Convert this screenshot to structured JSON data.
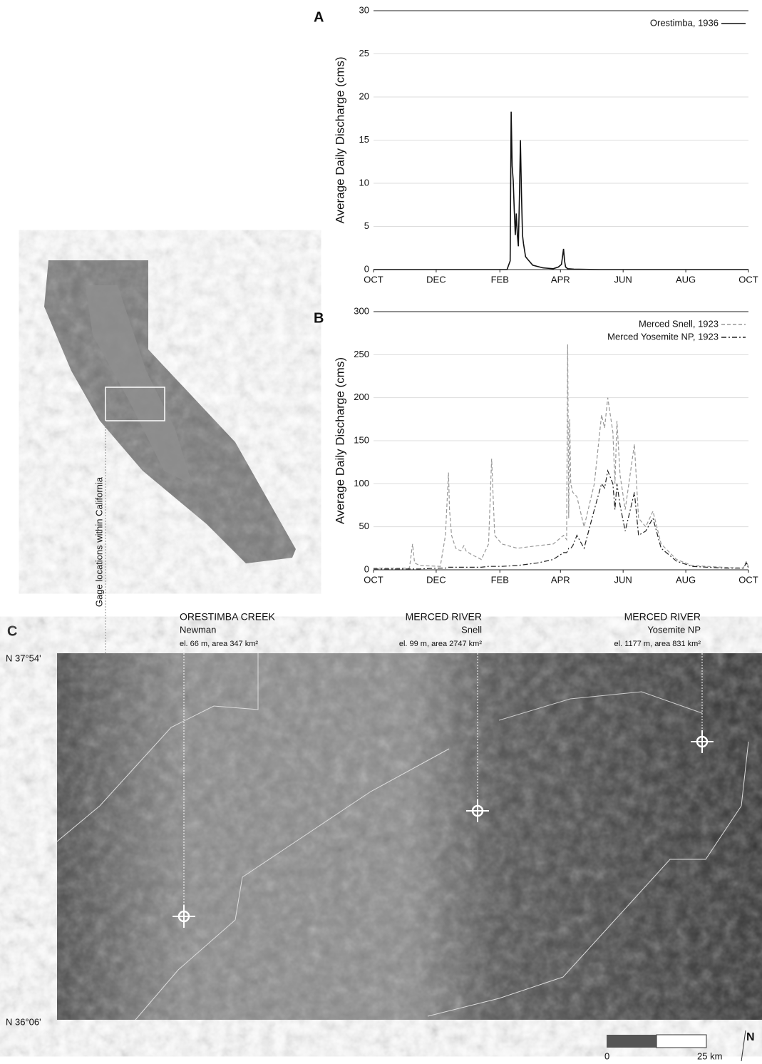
{
  "chart_data": [
    {
      "type": "line",
      "panel": "A",
      "y_label": "Average Daily Discharge (cms)",
      "x": [
        0,
        130,
        133,
        134,
        135,
        136,
        137,
        138,
        139,
        140,
        141,
        142,
        143,
        144,
        145,
        146,
        148,
        150,
        155,
        165,
        175,
        180,
        183,
        185,
        186,
        187,
        189,
        195,
        220,
        365
      ],
      "xlim": [
        0,
        365
      ],
      "xticks": [
        {
          "value": 0,
          "label": "OCT"
        },
        {
          "value": 61,
          "label": "DEC"
        },
        {
          "value": 123,
          "label": "FEB"
        },
        {
          "value": 182,
          "label": "APR"
        },
        {
          "value": 243,
          "label": "JUN"
        },
        {
          "value": 304,
          "label": "AUG"
        },
        {
          "value": 365,
          "label": "OCT"
        }
      ],
      "ylim": [
        0,
        30
      ],
      "yticks": [
        0,
        5,
        10,
        15,
        20,
        25,
        30
      ],
      "grid": true,
      "legend": "upper right",
      "series": [
        {
          "name": "Orestimba, 1936",
          "color": "#111111",
          "dash": "solid",
          "values": [
            0,
            0,
            1,
            18.3,
            12,
            10.3,
            7,
            4,
            6.5,
            4,
            2.7,
            8,
            15,
            9,
            4,
            3,
            1.5,
            1.2,
            0.5,
            0.2,
            0.1,
            0.3,
            0.6,
            2.4,
            1,
            0.3,
            0.1,
            0.05,
            0,
            0
          ]
        }
      ]
    },
    {
      "type": "line",
      "panel": "B",
      "y_label": "Average Daily Discharge (cms)",
      "x": [
        0,
        35,
        38,
        40,
        45,
        65,
        70,
        73,
        74,
        76,
        80,
        85,
        88,
        90,
        95,
        105,
        112,
        115,
        118,
        125,
        140,
        160,
        175,
        185,
        188,
        189,
        190,
        191,
        192,
        194,
        198,
        205,
        215,
        222,
        225,
        228,
        233,
        235,
        237,
        240,
        245,
        254,
        258,
        265,
        272,
        280,
        295,
        310,
        340,
        360,
        363,
        365
      ],
      "xlim": [
        0,
        365
      ],
      "xticks": [
        {
          "value": 0,
          "label": "OCT"
        },
        {
          "value": 61,
          "label": "DEC"
        },
        {
          "value": 123,
          "label": "FEB"
        },
        {
          "value": 182,
          "label": "APR"
        },
        {
          "value": 243,
          "label": "JUN"
        },
        {
          "value": 304,
          "label": "AUG"
        },
        {
          "value": 365,
          "label": "OCT"
        }
      ],
      "ylim": [
        0,
        300
      ],
      "yticks": [
        0,
        50,
        100,
        150,
        200,
        250,
        300
      ],
      "grid": true,
      "legend": "upper right",
      "series": [
        {
          "name": "Merced Snell, 1923",
          "color": "#999999",
          "dash": "dashed",
          "values": [
            2,
            2,
            30,
            8,
            5,
            4,
            40,
            113,
            70,
            40,
            25,
            22,
            28,
            22,
            18,
            12,
            30,
            129,
            40,
            30,
            25,
            28,
            30,
            40,
            35,
            262,
            60,
            175,
            100,
            90,
            85,
            50,
            100,
            180,
            165,
            200,
            160,
            100,
            173,
            110,
            70,
            146,
            60,
            50,
            68,
            30,
            12,
            5,
            3,
            2,
            10,
            3
          ]
        },
        {
          "name": "Merced Yosemite NP, 1923",
          "color": "#222222",
          "dash": "dashdot",
          "values": [
            1,
            1,
            1,
            1,
            1,
            2,
            2,
            3,
            3,
            3,
            3,
            3,
            3,
            3,
            3,
            3,
            4,
            4,
            4,
            4,
            5,
            8,
            12,
            20,
            20,
            22,
            25,
            25,
            25,
            28,
            40,
            25,
            70,
            100,
            95,
            115,
            100,
            70,
            100,
            75,
            45,
            90,
            40,
            45,
            60,
            25,
            10,
            4,
            2,
            2,
            8,
            2
          ]
        }
      ]
    }
  ],
  "map": {
    "panel": "C",
    "lat_top": "N 37°54'",
    "lat_bottom": "N 36°06'",
    "locator_label": "Gage locations within California",
    "gages": [
      {
        "name": "ORESTIMBA CREEK",
        "site": "Newman",
        "info": "el. 66 m, area 347 km²"
      },
      {
        "name": "MERCED RIVER",
        "site": "Snell",
        "info": "el. 99 m, area 2747 km²"
      },
      {
        "name": "MERCED RIVER",
        "site": "Yosemite NP",
        "info": "el. 1177 m, area 831 km²"
      }
    ],
    "scale": {
      "start": "0",
      "end": "25 km"
    },
    "north": "N"
  }
}
